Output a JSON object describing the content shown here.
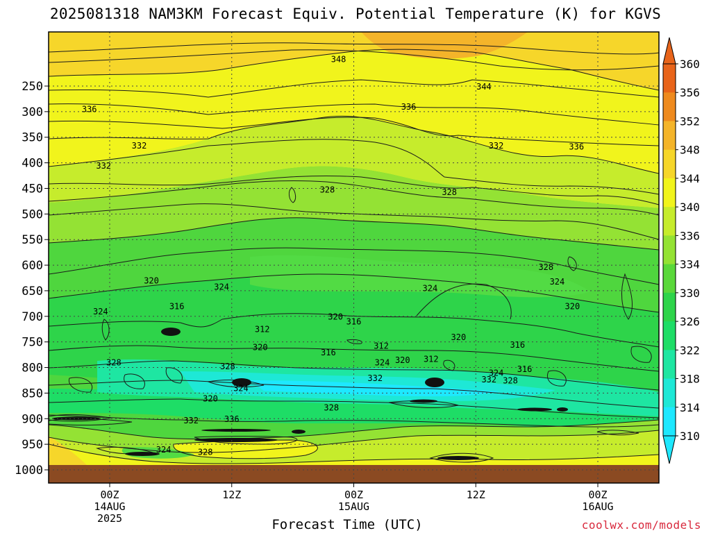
{
  "title": "2025081318 NAM3KM Forecast Equiv. Potential Temperature (K) for KGVS",
  "credit": "coolwx.com/models",
  "colors": {
    "ground": "#8b4a22",
    "bands": [
      "#1ee8ff",
      "#1ee8d6",
      "#1ee6a2",
      "#1edd66",
      "#2ed44a",
      "#5ad83a",
      "#94e234",
      "#c6ec2c",
      "#f1f41c",
      "#f6d62a",
      "#f4b42a",
      "#ee8a1e",
      "#e8641a"
    ]
  },
  "chart_data": {
    "type": "heatmap",
    "title": "2025081318 NAM3KM Forecast Equiv. Potential Temperature (K) for KGVS",
    "xlabel": "Forecast Time (UTC)",
    "ylabel": "",
    "x_ticks": [
      {
        "lines": [
          "00Z",
          "14AUG",
          "2025"
        ]
      },
      {
        "lines": [
          "12Z"
        ]
      },
      {
        "lines": [
          "00Z",
          "15AUG"
        ]
      },
      {
        "lines": [
          "12Z"
        ]
      },
      {
        "lines": [
          "00Z",
          "16AUG"
        ]
      }
    ],
    "y_ticks": [
      250,
      300,
      350,
      400,
      450,
      500,
      550,
      600,
      650,
      700,
      750,
      800,
      850,
      900,
      950,
      1000
    ],
    "colorbar": {
      "labels": [
        360,
        356,
        352,
        348,
        344,
        340,
        336,
        334,
        330,
        326,
        322,
        318,
        314,
        310
      ]
    },
    "contour_labels": [
      {
        "text": "348",
        "t": 22.5,
        "p": 197
      },
      {
        "text": "344",
        "t": 36.8,
        "p": 251
      },
      {
        "text": "336",
        "t": -2.0,
        "p": 295
      },
      {
        "text": "336",
        "t": 29.4,
        "p": 290
      },
      {
        "text": "336",
        "t": 45.9,
        "p": 368
      },
      {
        "text": "332",
        "t": 2.9,
        "p": 366
      },
      {
        "text": "332",
        "t": -0.6,
        "p": 405
      },
      {
        "text": "332",
        "t": 38.0,
        "p": 366
      },
      {
        "text": "328",
        "t": 21.4,
        "p": 452
      },
      {
        "text": "328",
        "t": 11.6,
        "p": 797
      },
      {
        "text": "328",
        "t": 33.4,
        "p": 457
      },
      {
        "text": "328",
        "t": 42.9,
        "p": 603
      },
      {
        "text": "328",
        "t": 0.4,
        "p": 790
      },
      {
        "text": "328",
        "t": 21.8,
        "p": 878
      },
      {
        "text": "328",
        "t": 39.4,
        "p": 825
      },
      {
        "text": "328",
        "t": 9.4,
        "p": 965
      },
      {
        "text": "324",
        "t": 11.0,
        "p": 642
      },
      {
        "text": "324",
        "t": 31.5,
        "p": 645
      },
      {
        "text": "324",
        "t": 44.0,
        "p": 632
      },
      {
        "text": "324",
        "t": -0.9,
        "p": 690
      },
      {
        "text": "324",
        "t": 12.9,
        "p": 840
      },
      {
        "text": "324",
        "t": 26.8,
        "p": 790
      },
      {
        "text": "324",
        "t": 38.0,
        "p": 810
      },
      {
        "text": "324",
        "t": 5.3,
        "p": 960
      },
      {
        "text": "320",
        "t": 4.1,
        "p": 630
      },
      {
        "text": "320",
        "t": 45.5,
        "p": 680
      },
      {
        "text": "320",
        "t": 22.2,
        "p": 700
      },
      {
        "text": "320",
        "t": 34.3,
        "p": 740
      },
      {
        "text": "320",
        "t": 14.8,
        "p": 760
      },
      {
        "text": "320",
        "t": 28.8,
        "p": 785
      },
      {
        "text": "320",
        "t": 9.9,
        "p": 860
      },
      {
        "text": "316",
        "t": 6.6,
        "p": 680
      },
      {
        "text": "316",
        "t": 24.0,
        "p": 710
      },
      {
        "text": "316",
        "t": 40.1,
        "p": 755
      },
      {
        "text": "316",
        "t": 21.5,
        "p": 770
      },
      {
        "text": "316",
        "t": 40.8,
        "p": 803
      },
      {
        "text": "312",
        "t": 15.0,
        "p": 725
      },
      {
        "text": "312",
        "t": 26.7,
        "p": 757
      },
      {
        "text": "312",
        "t": 31.6,
        "p": 783
      },
      {
        "text": "332",
        "t": 26.1,
        "p": 820
      },
      {
        "text": "332",
        "t": 37.3,
        "p": 823
      },
      {
        "text": "332",
        "t": 8.0,
        "p": 903
      },
      {
        "text": "336",
        "t": 12.0,
        "p": 900
      }
    ]
  }
}
